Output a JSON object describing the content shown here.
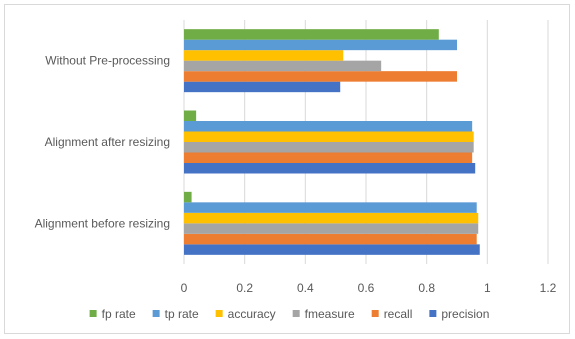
{
  "chart_data": {
    "type": "bar",
    "orientation": "horizontal",
    "title": "",
    "xlabel": "",
    "ylabel": "",
    "xlim": [
      0,
      1.2
    ],
    "x_ticks": [
      "0",
      "0.2",
      "0.4",
      "0.6",
      "0.8",
      "1",
      "1.2"
    ],
    "grid": "vertical",
    "legend_position": "bottom",
    "categories": [
      "Alignment before resizing",
      "Alignment after resizing",
      "Without Pre-processing"
    ],
    "series": [
      {
        "name": "precision",
        "color": "#4472c4",
        "values": [
          0.975,
          0.96,
          0.515
        ]
      },
      {
        "name": "recall",
        "color": "#ed7d31",
        "values": [
          0.965,
          0.95,
          0.9
        ]
      },
      {
        "name": "fmeasure",
        "color": "#a5a5a5",
        "values": [
          0.97,
          0.955,
          0.65
        ]
      },
      {
        "name": "accuracy",
        "color": "#ffc000",
        "values": [
          0.97,
          0.955,
          0.525
        ]
      },
      {
        "name": "tp rate",
        "color": "#5b9bd5",
        "values": [
          0.965,
          0.95,
          0.9
        ]
      },
      {
        "name": "fp rate",
        "color": "#70ad47",
        "values": [
          0.025,
          0.04,
          0.84
        ]
      }
    ],
    "legend_order": [
      "fp rate",
      "tp rate",
      "accuracy",
      "fmeasure",
      "recall",
      "precision"
    ]
  }
}
